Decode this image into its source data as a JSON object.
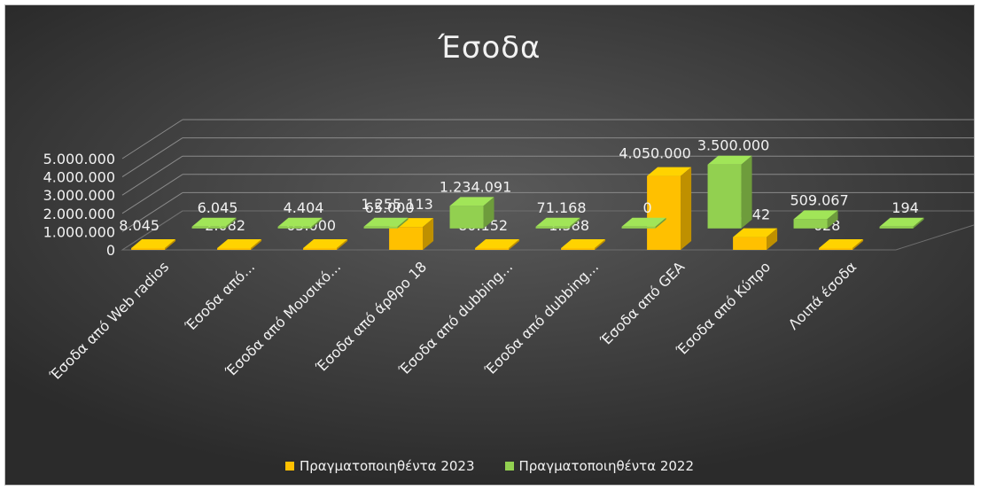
{
  "chart_data": {
    "type": "bar",
    "title": "Έσοδα",
    "categories": [
      "Έσοδα από Web radios",
      "Έσοδα από...",
      "Έσοδα από Μουσικό...",
      "Έσοδα από άρθρο 18",
      "Έσοδα από dubbing...",
      "Έσοδα από dubbing...",
      "Έσοδα από GEA",
      "Έσοδα από Κύπρο",
      "Λοιπά έσοδα"
    ],
    "series": [
      {
        "name": "Πραγματοποιηθέντα 2023",
        "color": "#ffc000",
        "values": [
          8045,
          2082,
          65000,
          1255113,
          80152,
          1588,
          4050000,
          700342,
          628
        ],
        "labels": [
          "8.045",
          "2.082",
          "65.000",
          "1.255.113",
          "80.152",
          "1.588",
          "4.050.000",
          "700.342",
          "628"
        ]
      },
      {
        "name": "Πραγματοποιηθέντα 2022",
        "color": "#92d050",
        "values": [
          6045,
          4404,
          65000,
          1234091,
          71168,
          0,
          3500000,
          509067,
          194
        ],
        "labels": [
          "6.045",
          "4.404",
          "65.000",
          "1.234.091",
          "71.168",
          "0",
          "3.500.000",
          "509.067",
          "194"
        ]
      }
    ],
    "y_ticks": [
      "0",
      "1.000.000",
      "2.000.000",
      "3.000.000",
      "4.000.000",
      "5.000.000"
    ],
    "ylim": [
      0,
      5000000
    ],
    "grid": true,
    "legend_position": "bottom"
  }
}
